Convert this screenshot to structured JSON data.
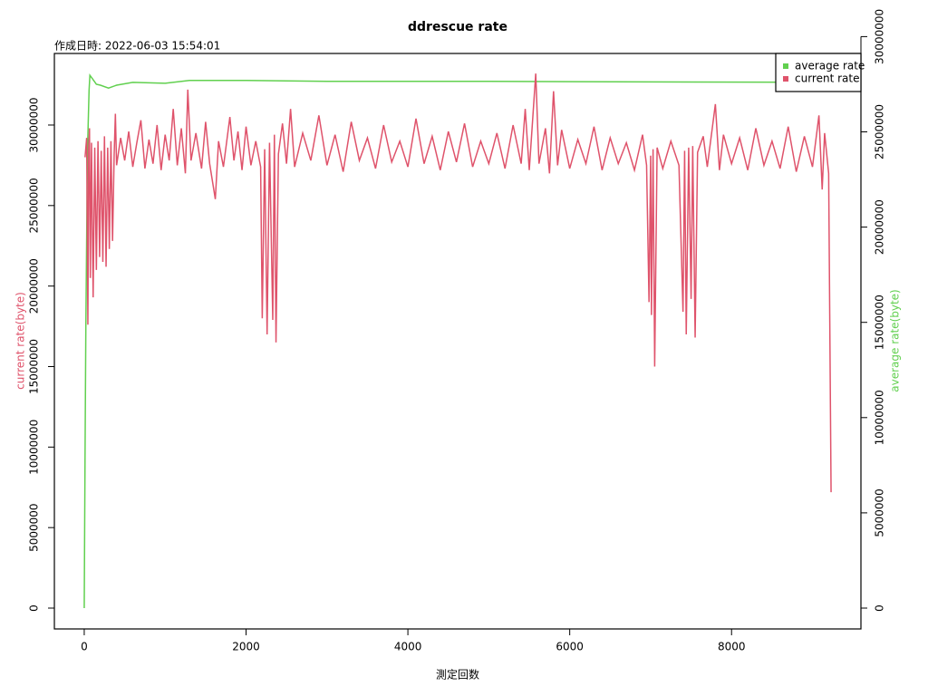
{
  "chart_data": {
    "type": "line",
    "title": "ddrescue rate",
    "subtitle": "作成日時: 2022-06-03 15:54:01",
    "xlabel": "測定回数",
    "ylabel": "current rate(byte)",
    "y2label": "average rate(byte)",
    "xlim": [
      -369,
      9599
    ],
    "xticks": [
      0,
      2000,
      4000,
      6000,
      8000
    ],
    "ylim": [
      -1294000,
      34445000
    ],
    "yticks": [
      0,
      5000000,
      10000000,
      15000000,
      20000000,
      25000000,
      30000000
    ],
    "y2lim": [
      -1094000,
      29115000
    ],
    "y2ticks": [
      0,
      5000000,
      10000000,
      15000000,
      20000000,
      25000000,
      30000000
    ],
    "legend": "top-right",
    "series": [
      {
        "name": "average rate",
        "color": "#61D04F",
        "axis": "y2",
        "x": [
          0,
          10,
          20,
          40,
          60,
          70,
          100,
          150,
          200,
          300,
          400,
          600,
          1000,
          1300,
          2000,
          3000,
          5000,
          7000,
          9230
        ],
        "values": [
          0,
          8000000,
          14800000,
          24000000,
          27200000,
          27970000,
          27800000,
          27500000,
          27450000,
          27300000,
          27450000,
          27600000,
          27550000,
          27700000,
          27700000,
          27650000,
          27650000,
          27620000,
          27600000
        ]
      },
      {
        "name": "current rate",
        "color": "#DF536B",
        "x": [
          10,
          30,
          45,
          55,
          65,
          75,
          90,
          110,
          130,
          150,
          170,
          190,
          210,
          230,
          250,
          270,
          290,
          310,
          330,
          350,
          370,
          385,
          400,
          450,
          500,
          550,
          600,
          650,
          700,
          750,
          800,
          850,
          900,
          950,
          1000,
          1050,
          1100,
          1150,
          1200,
          1250,
          1280,
          1320,
          1380,
          1450,
          1500,
          1550,
          1620,
          1660,
          1720,
          1800,
          1850,
          1900,
          1950,
          2000,
          2060,
          2120,
          2180,
          2200,
          2230,
          2260,
          2290,
          2330,
          2350,
          2370,
          2400,
          2450,
          2500,
          2550,
          2600,
          2700,
          2800,
          2900,
          3000,
          3100,
          3200,
          3300,
          3400,
          3500,
          3600,
          3700,
          3800,
          3900,
          4000,
          4100,
          4200,
          4300,
          4400,
          4500,
          4600,
          4700,
          4800,
          4900,
          5000,
          5100,
          5200,
          5300,
          5400,
          5450,
          5500,
          5580,
          5620,
          5700,
          5750,
          5800,
          5850,
          5900,
          6000,
          6100,
          6200,
          6300,
          6400,
          6500,
          6600,
          6700,
          6800,
          6900,
          6950,
          6980,
          7000,
          7010,
          7030,
          7050,
          7080,
          7150,
          7250,
          7350,
          7400,
          7420,
          7440,
          7470,
          7500,
          7520,
          7550,
          7580,
          7650,
          7700,
          7800,
          7850,
          7900,
          8000,
          8100,
          8200,
          8300,
          8400,
          8500,
          8600,
          8700,
          8800,
          8900,
          9000,
          9080,
          9120,
          9150,
          9200,
          9230
        ],
        "values": [
          28000000,
          29200000,
          17600000,
          28500000,
          29800000,
          20500000,
          28900000,
          19300000,
          28600000,
          21000000,
          29000000,
          21800000,
          28400000,
          21500000,
          29300000,
          21200000,
          28600000,
          22300000,
          29000000,
          22800000,
          28200000,
          30700000,
          27500000,
          29200000,
          27800000,
          29600000,
          27400000,
          28900000,
          30300000,
          27300000,
          29100000,
          27600000,
          30000000,
          27200000,
          29400000,
          27800000,
          31000000,
          27500000,
          29800000,
          27000000,
          32200000,
          27800000,
          29500000,
          27300000,
          30200000,
          27600000,
          25400000,
          29000000,
          27400000,
          30500000,
          27800000,
          29600000,
          27200000,
          29900000,
          27500000,
          29000000,
          27400000,
          18000000,
          28500000,
          17000000,
          28900000,
          17900000,
          29400000,
          16500000,
          28200000,
          30100000,
          27600000,
          31000000,
          27400000,
          29500000,
          27800000,
          30600000,
          27500000,
          29400000,
          27100000,
          30200000,
          27800000,
          29200000,
          27300000,
          30000000,
          27700000,
          29000000,
          27400000,
          30400000,
          27600000,
          29300000,
          27200000,
          29600000,
          27700000,
          30100000,
          27400000,
          29000000,
          27600000,
          29500000,
          27300000,
          30000000,
          27600000,
          31000000,
          27200000,
          33200000,
          27600000,
          29800000,
          27000000,
          32100000,
          27500000,
          29700000,
          27300000,
          29100000,
          27600000,
          29900000,
          27200000,
          29200000,
          27600000,
          28900000,
          27200000,
          29400000,
          27500000,
          19000000,
          28100000,
          18200000,
          28500000,
          15000000,
          28600000,
          27300000,
          29000000,
          27500000,
          18400000,
          28400000,
          17000000,
          28600000,
          19200000,
          28700000,
          16800000,
          28300000,
          29300000,
          27400000,
          31300000,
          27200000,
          29400000,
          27600000,
          29200000,
          27200000,
          29800000,
          27500000,
          29000000,
          27300000,
          29900000,
          27100000,
          29300000,
          27400000,
          30600000,
          26000000,
          29500000,
          27000000,
          7200000
        ]
      }
    ]
  }
}
